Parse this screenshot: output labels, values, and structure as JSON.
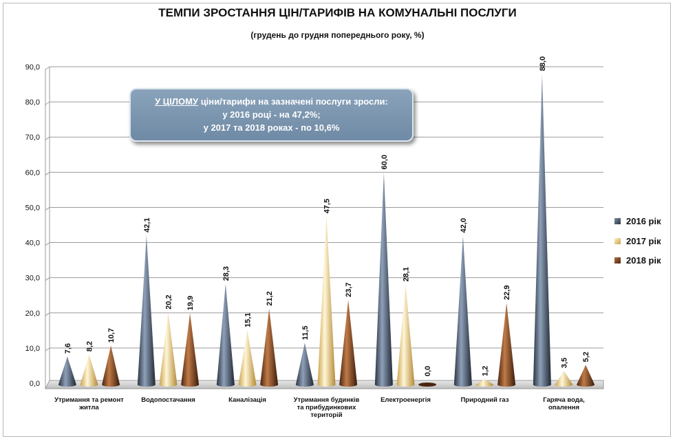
{
  "title": "ТЕМПИ ЗРОСТАННЯ ЦІН/ТАРИФІВ НА КОМУНАЛЬНІ ПОСЛУГИ",
  "subtitle": "(грудень до грудня попереднього року, %)",
  "callout": {
    "highlight": "У ЦІЛОМУ",
    "line1_rest": " ціни/тарифи на зазначені послуги зросли:",
    "line2": "у 2016 році - на 47,2%;",
    "line3": "у 2017 та 2018 роках - по 10,6%"
  },
  "chart_data": {
    "type": "bar",
    "bar_style": "cone",
    "categories": [
      [
        "Утримання та ремонт",
        "житла"
      ],
      [
        "Водопостачання"
      ],
      [
        "Каналізація"
      ],
      [
        "Утримання будинків",
        "та прибудинкових",
        "територій"
      ],
      [
        "Електроенергія"
      ],
      [
        "Природний газ"
      ],
      [
        "Гаряча вода,",
        "опалення"
      ]
    ],
    "series": [
      {
        "name": "2016 рік",
        "color": "#3d4a5c",
        "values": [
          7.6,
          42.1,
          28.3,
          11.5,
          60.0,
          42.0,
          88.0
        ],
        "labels": [
          "7,6",
          "42,1",
          "28,3",
          "11,5",
          "60,0",
          "42,0",
          "88,0"
        ]
      },
      {
        "name": "2017 рік",
        "color": "#e8c87a",
        "values": [
          8.2,
          20.2,
          15.1,
          47.5,
          28.1,
          1.2,
          3.5
        ],
        "labels": [
          "8,2",
          "20,2",
          "15,1",
          "47,5",
          "28,1",
          "1,2",
          "3,5"
        ]
      },
      {
        "name": "2018 рік",
        "color": "#6b3a1f",
        "values": [
          10.7,
          19.9,
          21.2,
          23.7,
          0.0,
          22.9,
          5.2
        ],
        "labels": [
          "10,7",
          "19,9",
          "21,2",
          "23,7",
          "0,0",
          "22,9",
          "5,2"
        ]
      }
    ],
    "ylim": [
      0,
      90
    ],
    "yticks": [
      "0,0",
      "10,0",
      "20,0",
      "30,0",
      "40,0",
      "50,0",
      "60,0",
      "70,0",
      "80,0",
      "90,0"
    ],
    "grid": true,
    "legend": "right"
  }
}
